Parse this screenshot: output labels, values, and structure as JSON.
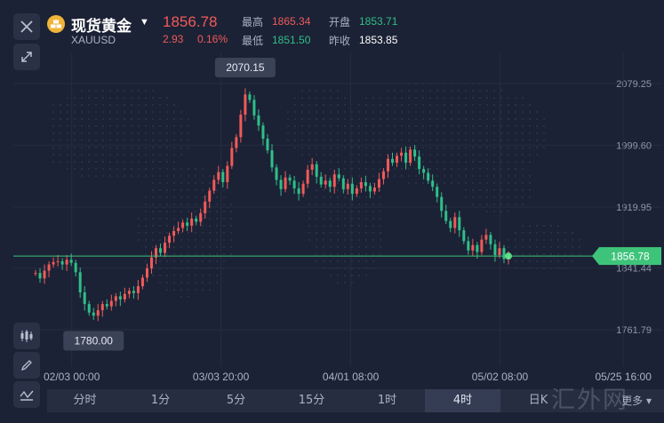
{
  "header": {
    "title": "现货黄金",
    "symbol": "XAUUSD",
    "price": "1856.78",
    "change": "2.93",
    "change_pct": "0.16%",
    "stats": {
      "high_label": "最高",
      "high": "1865.34",
      "low_label": "最低",
      "low": "1851.50",
      "open_label": "开盘",
      "open": "1853.71",
      "prev_close_label": "昨收",
      "prev_close": "1853.85"
    }
  },
  "icons": {
    "close": "close-icon",
    "expand": "expand-icon",
    "coin": "gold-coin-icon",
    "caret": "caret-down-icon",
    "candle": "candlestick-icon",
    "pen": "pen-icon",
    "indicator": "indicator-icon"
  },
  "chart_data": {
    "type": "candlestick",
    "y_ticks": [
      "2079.25",
      "1999.60",
      "1919.95",
      "1841.44",
      "1761.79"
    ],
    "y_tick_values": [
      2079.25,
      1999.6,
      1919.95,
      1841.44,
      1761.79
    ],
    "ylim": [
      1715,
      2118
    ],
    "x_ticks": [
      "02/03 00:00",
      "03/03 20:00",
      "04/01 08:00",
      "05/02 08:00",
      "05/25 16:00"
    ],
    "x_tick_positions": [
      0.09,
      0.32,
      0.52,
      0.75,
      0.94
    ],
    "max_label": "2070.15",
    "min_label": "1780.00",
    "current_label": "1856.78",
    "current_value": 1856.78,
    "series": [
      {
        "values": [
          1835,
          1828,
          1838,
          1846,
          1849,
          1850,
          1846,
          1852,
          1848,
          1836,
          1810,
          1795,
          1784,
          1780,
          1787,
          1795,
          1792,
          1799,
          1805,
          1801,
          1808,
          1812,
          1809,
          1818,
          1829,
          1841,
          1855,
          1867,
          1861,
          1874,
          1883,
          1889,
          1893,
          1900,
          1896,
          1905,
          1901,
          1912,
          1927,
          1941,
          1955,
          1965,
          1952,
          1973,
          1996,
          2010,
          2039,
          2065,
          2058,
          2038,
          2025,
          2008,
          1993,
          1971,
          1955,
          1943,
          1958,
          1954,
          1944,
          1937,
          1950,
          1968,
          1975,
          1959,
          1949,
          1954,
          1946,
          1962,
          1957,
          1943,
          1950,
          1937,
          1944,
          1952,
          1947,
          1940,
          1945,
          1956,
          1966,
          1982,
          1977,
          1986,
          1990,
          1977,
          1994,
          1985,
          1969,
          1964,
          1954,
          1946,
          1933,
          1915,
          1902,
          1893,
          1907,
          1890,
          1876,
          1864,
          1871,
          1862,
          1878,
          1884,
          1872,
          1858,
          1867,
          1853,
          1857
        ]
      }
    ]
  },
  "timeframes": [
    "分时",
    "1分",
    "5分",
    "15分",
    "1时",
    "4时",
    "日K"
  ],
  "active_timeframe": "4时",
  "more_label": "更多",
  "watermark": "汇外网",
  "colors": {
    "background": "#1c2235",
    "up": "#f05a5a",
    "down": "#2fbf8a",
    "current_line": "#3ec47a",
    "tag_bg": "#3a4257"
  }
}
